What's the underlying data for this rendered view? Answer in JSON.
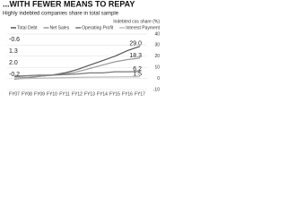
{
  "chart_data": {
    "type": "line",
    "title": "...WITH FEWER MEANS TO REPAY",
    "subtitle": "Highly indebted companies share in total sample",
    "y_label": "Indebted cos share (%)",
    "categories": [
      "FY07",
      "FY08",
      "FY09",
      "FY10",
      "FY11",
      "FY12",
      "FY13",
      "FY14",
      "FY15",
      "FY16",
      "FY17"
    ],
    "series": [
      {
        "name": "Total Debt",
        "color": "#555555",
        "values": [
          -0.6,
          0.5,
          2,
          3,
          5,
          8,
          12,
          16,
          20,
          25,
          29.0
        ],
        "value_labels": [
          "-0.6",
          null,
          null,
          null,
          null,
          null,
          null,
          null,
          null,
          null,
          "29.0"
        ]
      },
      {
        "name": "Net Sales",
        "color": "#999999",
        "values": [
          1.3,
          1,
          2,
          3,
          4,
          6,
          9,
          12,
          15,
          17,
          18.3
        ],
        "value_labels": [
          "1.3",
          null,
          null,
          null,
          null,
          null,
          null,
          null,
          null,
          null,
          "18.3"
        ]
      },
      {
        "name": "Operating Profit",
        "color": "#777777",
        "values": [
          2.0,
          2.5,
          3,
          3,
          3.5,
          4,
          5,
          5,
          6,
          6,
          6.2
        ],
        "value_labels": [
          "2.0",
          null,
          null,
          null,
          null,
          null,
          null,
          null,
          null,
          null,
          "6.2"
        ]
      },
      {
        "name": "Interest Payment",
        "color": "#bbbbbb",
        "values": [
          -0.2,
          0,
          0.3,
          0.5,
          0.8,
          1,
          1.2,
          1.3,
          1.4,
          1.5,
          1.5
        ],
        "value_labels": [
          "-0.2",
          null,
          null,
          null,
          null,
          null,
          null,
          null,
          null,
          null,
          "1.5"
        ]
      }
    ],
    "ylim": [
      -10,
      40
    ],
    "yticks": [
      -10,
      0,
      10,
      20,
      30,
      40
    ],
    "grid": true
  }
}
